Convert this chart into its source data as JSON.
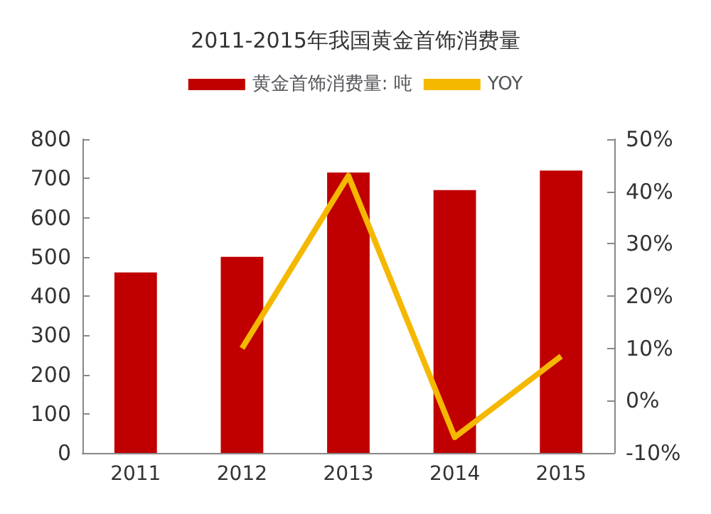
{
  "chart_data": {
    "type": "bar",
    "title": "2011-2015年我国黄金首饰消费量",
    "categories": [
      "2011",
      "2012",
      "2013",
      "2014",
      "2015"
    ],
    "series": [
      {
        "name": "黄金首饰消费量: 吨",
        "color": "#c00000",
        "values": [
          460,
          500,
          715,
          670,
          720
        ]
      },
      {
        "name": "YOY",
        "type": "line",
        "axis": "y2",
        "color": "#f5b800",
        "values": [
          null,
          10,
          43,
          -7,
          8.5
        ]
      }
    ],
    "ylim": [
      0,
      800
    ],
    "yticks": [
      0,
      100,
      200,
      300,
      400,
      500,
      600,
      700,
      800
    ],
    "y2lim": [
      -10,
      50
    ],
    "y2ticks": [
      {
        "value": -10,
        "label": "-10%"
      },
      {
        "value": 0,
        "label": "0%"
      },
      {
        "value": 10,
        "label": "10%"
      },
      {
        "value": 20,
        "label": "20%"
      },
      {
        "value": 30,
        "label": "30%"
      },
      {
        "value": 40,
        "label": "40%"
      },
      {
        "value": 50,
        "label": "50%"
      }
    ],
    "legend": "top",
    "grid": false,
    "marker": "none"
  }
}
